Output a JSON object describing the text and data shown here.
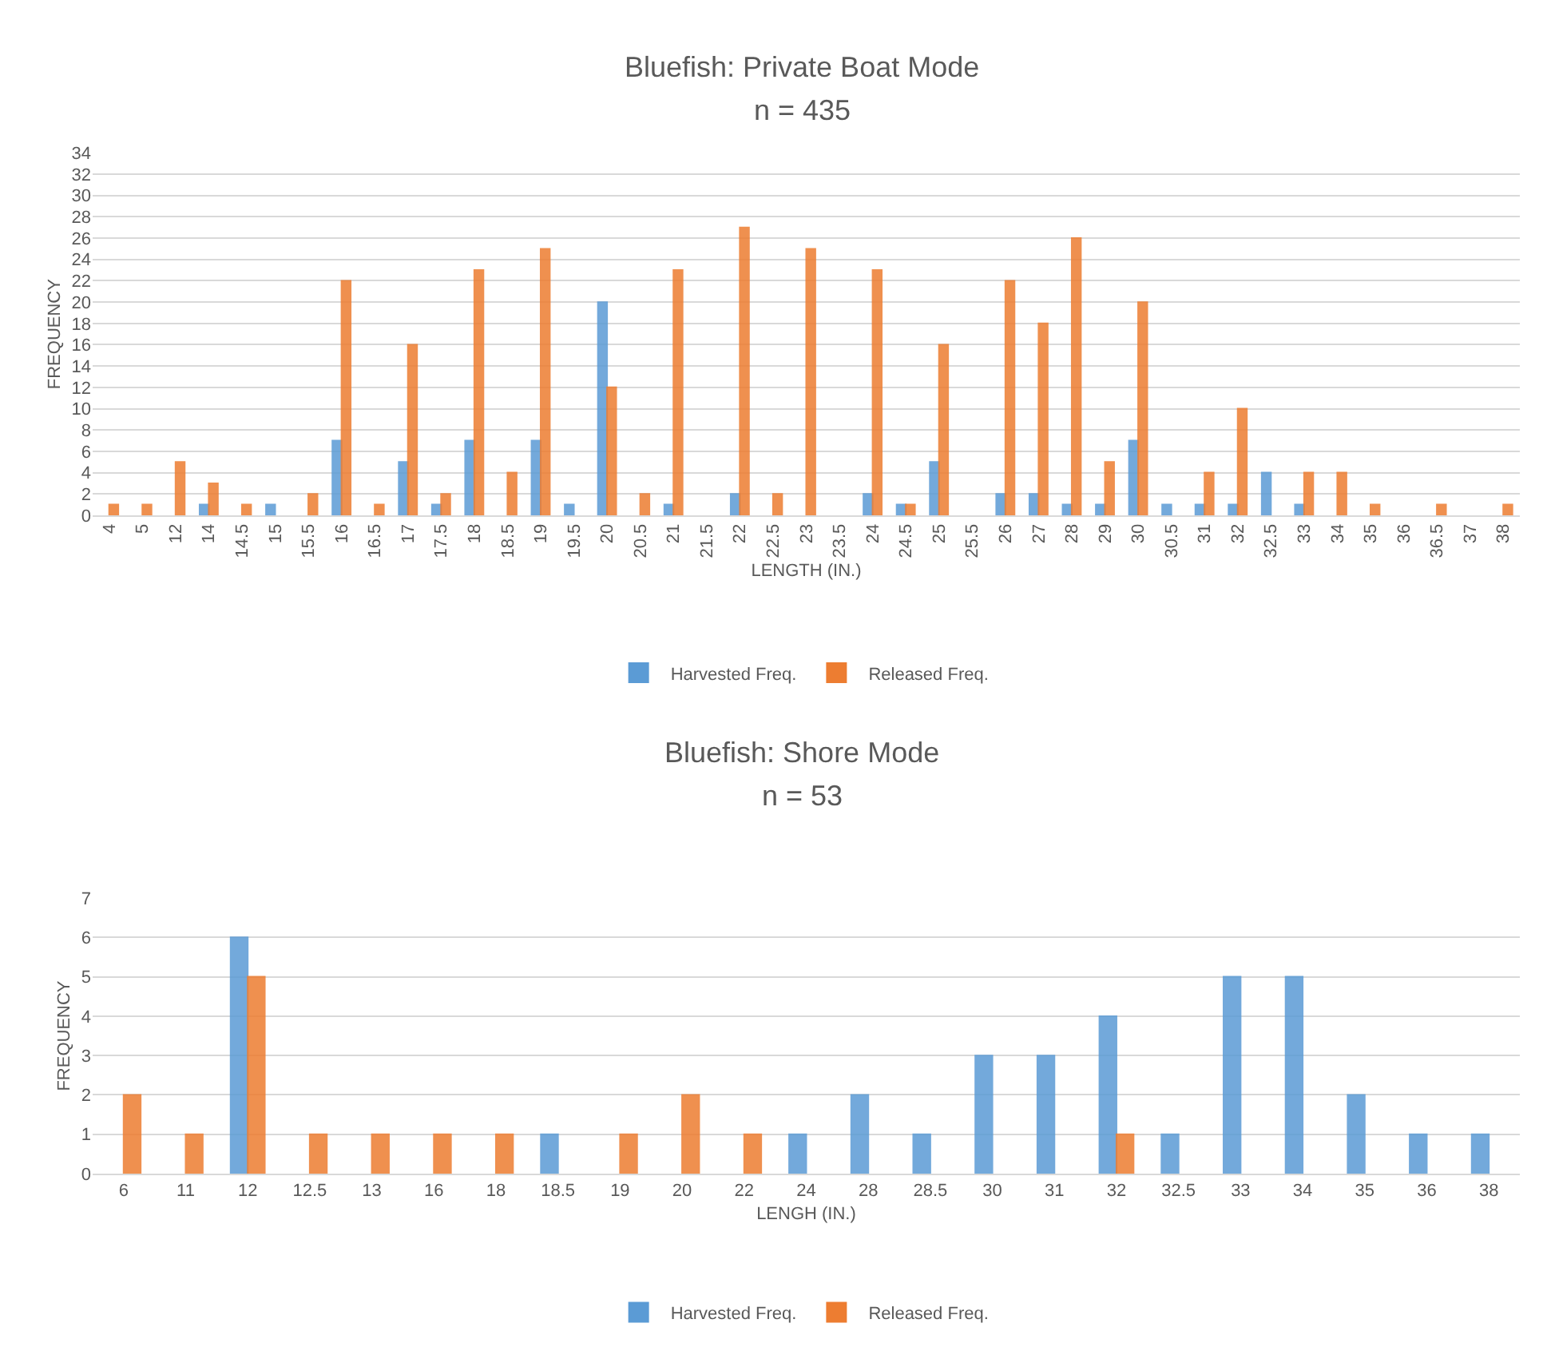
{
  "chart_data": [
    {
      "type": "bar",
      "title": "Bluefish: Private Boat Mode",
      "subtitle": "n = 435",
      "xlabel": "LENGTH (IN.)",
      "ylabel": "FREQUENCY",
      "categories": [
        "4",
        "5",
        "12",
        "14",
        "14.5",
        "15",
        "15.5",
        "16",
        "16.5",
        "17",
        "17.5",
        "18",
        "18.5",
        "19",
        "19.5",
        "20",
        "20.5",
        "21",
        "21.5",
        "22",
        "22.5",
        "23",
        "23.5",
        "24",
        "24.5",
        "25",
        "25.5",
        "26",
        "27",
        "28",
        "29",
        "30",
        "30.5",
        "31",
        "32",
        "32.5",
        "33",
        "34",
        "35",
        "36",
        "36.5",
        "37",
        "38"
      ],
      "series": [
        {
          "name": "Harvested Freq.",
          "color": "#5b9bd5",
          "values": [
            null,
            null,
            null,
            1,
            null,
            1,
            null,
            7,
            null,
            5,
            1,
            7,
            null,
            7,
            1,
            20,
            null,
            1,
            null,
            2,
            null,
            null,
            null,
            2,
            1,
            5,
            null,
            2,
            2,
            1,
            1,
            7,
            1,
            1,
            1,
            4,
            1,
            null,
            null,
            null,
            null,
            null,
            null
          ]
        },
        {
          "name": "Released Freq.",
          "color": "#ed7d31",
          "values": [
            1,
            1,
            5,
            3,
            1,
            null,
            2,
            22,
            1,
            16,
            2,
            23,
            4,
            25,
            null,
            12,
            2,
            23,
            null,
            27,
            2,
            25,
            null,
            23,
            1,
            16,
            null,
            22,
            18,
            26,
            5,
            20,
            null,
            4,
            10,
            null,
            4,
            4,
            1,
            null,
            1,
            null,
            1
          ]
        }
      ],
      "ylim": [
        0,
        34
      ],
      "yticks": [
        0,
        2,
        4,
        6,
        8,
        10,
        12,
        14,
        16,
        18,
        20,
        22,
        24,
        26,
        28,
        30,
        32,
        34
      ],
      "grid": "y",
      "legend": "bottom"
    },
    {
      "type": "bar",
      "title": "Bluefish: Shore Mode",
      "subtitle": "n = 53",
      "xlabel": "LENGH (IN.)",
      "ylabel": "FREQUENCY",
      "categories": [
        "6",
        "11",
        "12",
        "12.5",
        "13",
        "16",
        "18",
        "18.5",
        "19",
        "20",
        "22",
        "24",
        "28",
        "28.5",
        "30",
        "31",
        "32",
        "32.5",
        "33",
        "34",
        "35",
        "36",
        "38"
      ],
      "series": [
        {
          "name": "Harvested Freq.",
          "color": "#5b9bd5",
          "values": [
            null,
            null,
            6,
            null,
            null,
            null,
            null,
            1,
            null,
            null,
            null,
            1,
            2,
            1,
            3,
            3,
            4,
            1,
            5,
            5,
            2,
            1,
            1
          ]
        },
        {
          "name": "Released Freq.",
          "color": "#ed7d31",
          "values": [
            2,
            1,
            5,
            1,
            1,
            1,
            1,
            null,
            1,
            2,
            1,
            null,
            null,
            null,
            null,
            null,
            1,
            null,
            null,
            null,
            null,
            null,
            null
          ]
        }
      ],
      "ylim": [
        0,
        7
      ],
      "yticks": [
        0,
        1,
        2,
        3,
        4,
        5,
        6,
        7
      ],
      "grid": "y",
      "legend": "bottom"
    }
  ]
}
